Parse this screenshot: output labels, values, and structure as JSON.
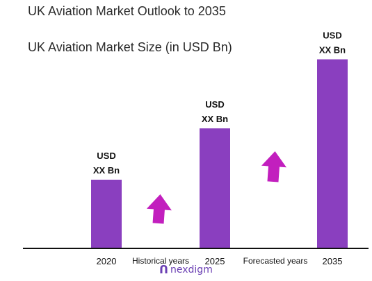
{
  "header": {
    "title": "UK Aviation Market Outlook to 2035",
    "subtitle": "UK Aviation Market Size (in USD Bn)"
  },
  "chart_data": {
    "type": "bar",
    "categories": [
      "2020",
      "2025",
      "2035"
    ],
    "values": [
      19.8,
      34.6,
      54.5
    ],
    "value_labels": [
      [
        "USD",
        "XX Bn"
      ],
      [
        "USD",
        "XX Bn"
      ],
      [
        "USD",
        "XX Bn"
      ]
    ],
    "segment_labels": [
      "Historical years",
      "Forecasted years"
    ],
    "ylim": [
      0,
      60
    ],
    "grid": false,
    "bar_color": "#8a3fbf",
    "arrow_color": "#c21fbe"
  },
  "brand": {
    "name": "nexdigm",
    "logo_icon": "nexdigm-n-mark"
  }
}
